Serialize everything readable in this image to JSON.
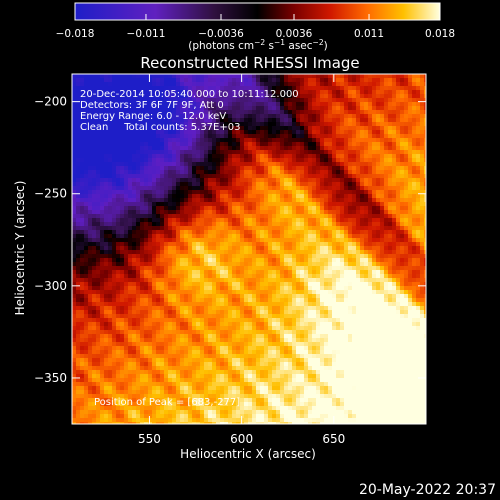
{
  "chart_data": {
    "type": "heatmap",
    "title": "Reconstructed RHESSI Image",
    "xlabel": "Heliocentric X (arcsec)",
    "ylabel": "Heliocentric Y (arcsec)",
    "xlim": [
      508,
      700
    ],
    "ylim": [
      -375,
      -185
    ],
    "xticks": [
      550,
      600,
      650
    ],
    "yticks": [
      -350,
      -300,
      -250,
      -200
    ],
    "colorbar": {
      "ticks": [
        "−0.018",
        "−0.011",
        "−0.0036",
        "0.0036",
        "0.011",
        "0.018"
      ],
      "tick_values": [
        -0.018,
        -0.011,
        -0.0036,
        0.0036,
        0.011,
        0.018
      ],
      "range": [
        -0.018,
        0.018
      ],
      "label_parts": [
        "(photons cm",
        "−2",
        " s",
        "−1",
        " asec",
        "−2",
        ")"
      ],
      "colors": [
        "#1e1ec8",
        "#5a1ec8",
        "#7a2a8a",
        "#000000",
        "#7a0000",
        "#d01800",
        "#ff6a00",
        "#ffb000",
        "#ffe05a",
        "#ffffd8"
      ]
    },
    "annotations": [
      "20-Dec-2014 10:05:40.000 to 10:11:12.000",
      "Detectors: 3F 6F 7F 9F, Att 0",
      "Energy Range: 6.0 - 12.0 keV",
      "Clean     Total counts: 5.37E+03"
    ],
    "peak_label": "Position of Peak = [683,-277]",
    "peak_position": [
      683,
      -277
    ],
    "intensity_description": "Negative (blue/purple) region in upper-left corner; bright positive (yellow/white) emission across center and right with maxima near (575,-280), (630,-240) and (683,-340)"
  },
  "footer": {
    "timestamp": "20-May-2022 20:37"
  }
}
